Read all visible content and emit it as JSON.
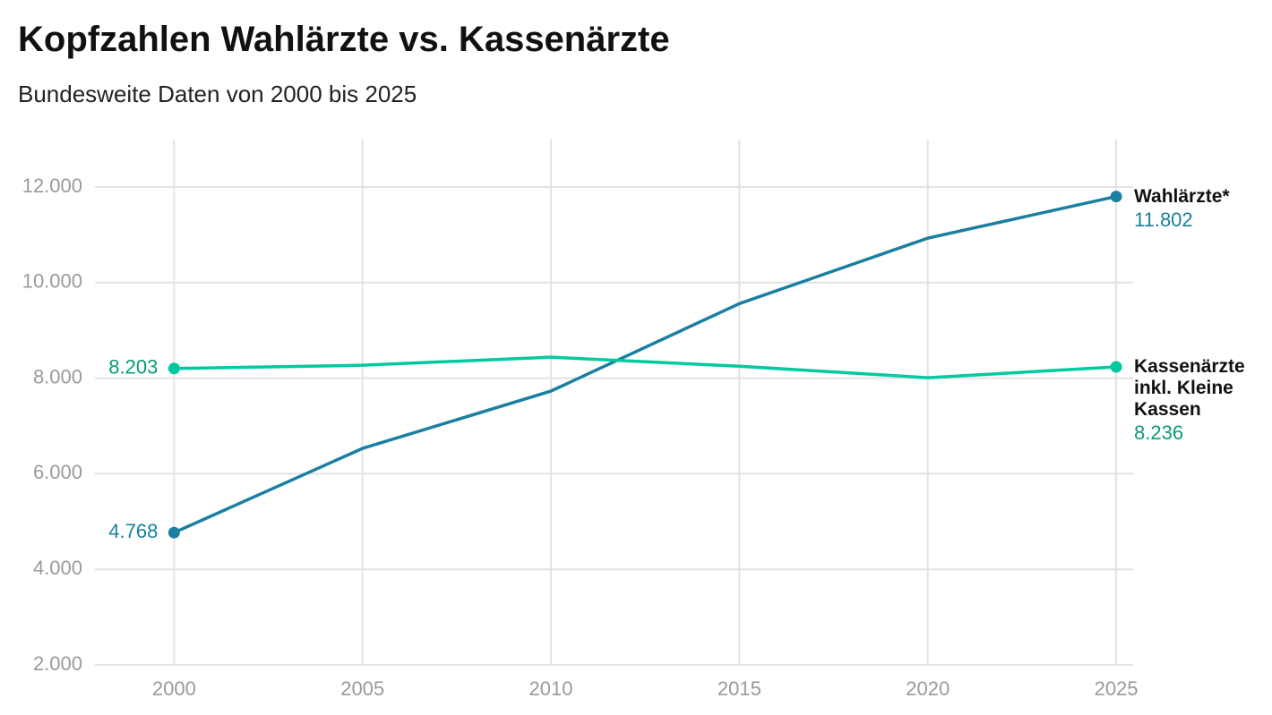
{
  "chart_data": {
    "type": "line",
    "title": "Kopfzahlen Wahlärzte vs. Kassenärzte",
    "subtitle": "Bundesweite Daten von 2000 bis 2025",
    "x": [
      2000,
      2005,
      2010,
      2015,
      2020,
      2025
    ],
    "xlim": [
      1997.9,
      2025.45
    ],
    "xticks": [
      2000,
      2005,
      2010,
      2015,
      2020,
      2025
    ],
    "ylim": [
      2000,
      13000
    ],
    "yticks": [
      {
        "value": 2000,
        "label": "2.000"
      },
      {
        "value": 4000,
        "label": "4.000"
      },
      {
        "value": 6000,
        "label": "6.000"
      },
      {
        "value": 8000,
        "label": "8.000"
      },
      {
        "value": 10000,
        "label": "10.000"
      },
      {
        "value": 12000,
        "label": "12.000"
      }
    ],
    "grid": true,
    "series": [
      {
        "name": "Wahlärzte*",
        "color": "#1a7fa0",
        "values": [
          4768,
          6530,
          7730,
          9560,
          10930,
          11802
        ],
        "value_labels": [
          "4.768",
          null,
          null,
          null,
          null,
          "11.802"
        ]
      },
      {
        "name": "Kassenärzte inkl. Kleine Kassen",
        "color": "#00c9a0",
        "values": [
          8203,
          8270,
          8440,
          8250,
          8010,
          8236
        ],
        "value_labels": [
          "8.203",
          null,
          null,
          null,
          null,
          "8.236"
        ]
      }
    ]
  }
}
